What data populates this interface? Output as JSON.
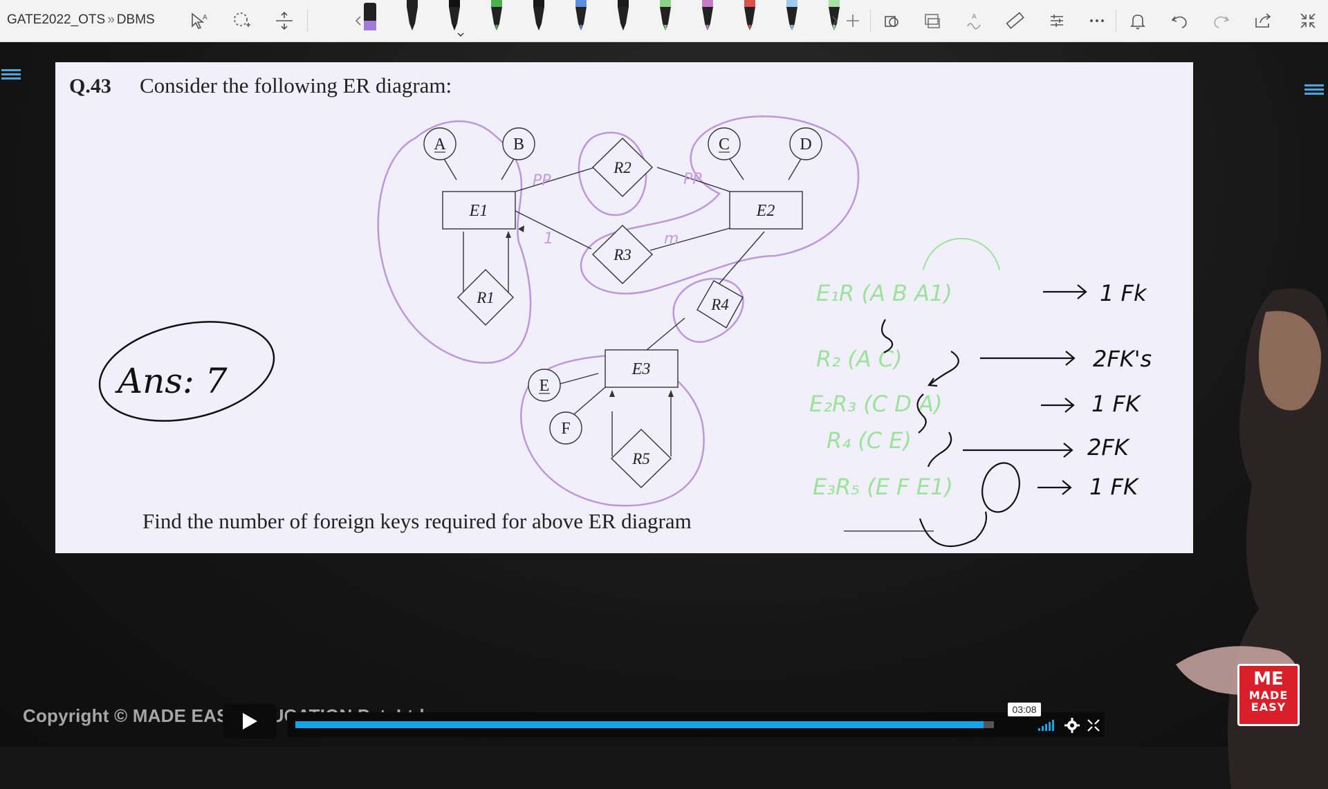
{
  "app": {
    "breadcrumb": {
      "part1": "GATE2022_OTS",
      "separator": "»",
      "part2": "DBMS"
    }
  },
  "toolbar": {
    "tools_left": [
      "text-select-icon",
      "lasso-icon",
      "insert-space-icon"
    ],
    "pens": [
      {
        "color": "#a27ad8",
        "kind": "highlighter"
      },
      {
        "color": "#222222",
        "kind": "pen"
      },
      {
        "color": "#111111",
        "kind": "pen",
        "selected": true
      },
      {
        "color": "#4caf50",
        "kind": "pen"
      },
      {
        "color": "#1a1a1a",
        "kind": "pen"
      },
      {
        "color": "#5b8fd9",
        "kind": "pen"
      },
      {
        "color": "#1a1a1a",
        "kind": "pen"
      },
      {
        "color": "#8ad18a",
        "kind": "pen"
      },
      {
        "color": "#c77bc7",
        "kind": "pen"
      },
      {
        "color": "#d9534f",
        "kind": "pen"
      },
      {
        "color": "#9cc9f0",
        "kind": "pen"
      },
      {
        "color": "#a8e0a8",
        "kind": "pen"
      }
    ],
    "tools_right": [
      "add-icon",
      "shapes-icon",
      "ink-to-shape-icon",
      "ink-to-text-icon",
      "ruler-icon",
      "adjust-icon",
      "more-icon",
      "bell-icon",
      "undo-icon",
      "redo-icon",
      "share-icon",
      "collapse-icon"
    ]
  },
  "slide": {
    "question_number": "Q.43",
    "question_text": "Consider the following ER diagram:",
    "footer_text": "Find the number of foreign keys required for above ER diagram",
    "entities": [
      "E1",
      "E2",
      "E3"
    ],
    "relationships": [
      "R1",
      "R2",
      "R3",
      "R4",
      "R5"
    ],
    "attributes": [
      "A",
      "B",
      "C",
      "D",
      "E",
      "F"
    ],
    "annotations": {
      "answer": "Ans: 7",
      "pp1": "PP",
      "pp2": "PP",
      "one": "1",
      "m": "m"
    },
    "solution_lines": [
      {
        "schema": "E₁R (A B A1)",
        "result": "1 Fk"
      },
      {
        "schema": "R₂ (A C)",
        "result": "2FK's"
      },
      {
        "schema": "E₂R₃ (C D A)",
        "result": "1 FK"
      },
      {
        "schema": "R₄ (C E)",
        "result": "2FK"
      },
      {
        "schema": "E₃R₅ (E F E1)",
        "result": "1 FK"
      }
    ]
  },
  "player": {
    "watermark": "Copyright © MADE EASY EDUCATION Pvt. Ltd.",
    "time": "03:08",
    "progress": 0.985
  },
  "logo": {
    "mark": "ME",
    "word1": "MADE",
    "word2": "EASY"
  },
  "colors": {
    "accent": "#14a3e6",
    "brand": "#d9202a",
    "highlight": "#b487d6",
    "annotation_green": "#9be39b"
  }
}
